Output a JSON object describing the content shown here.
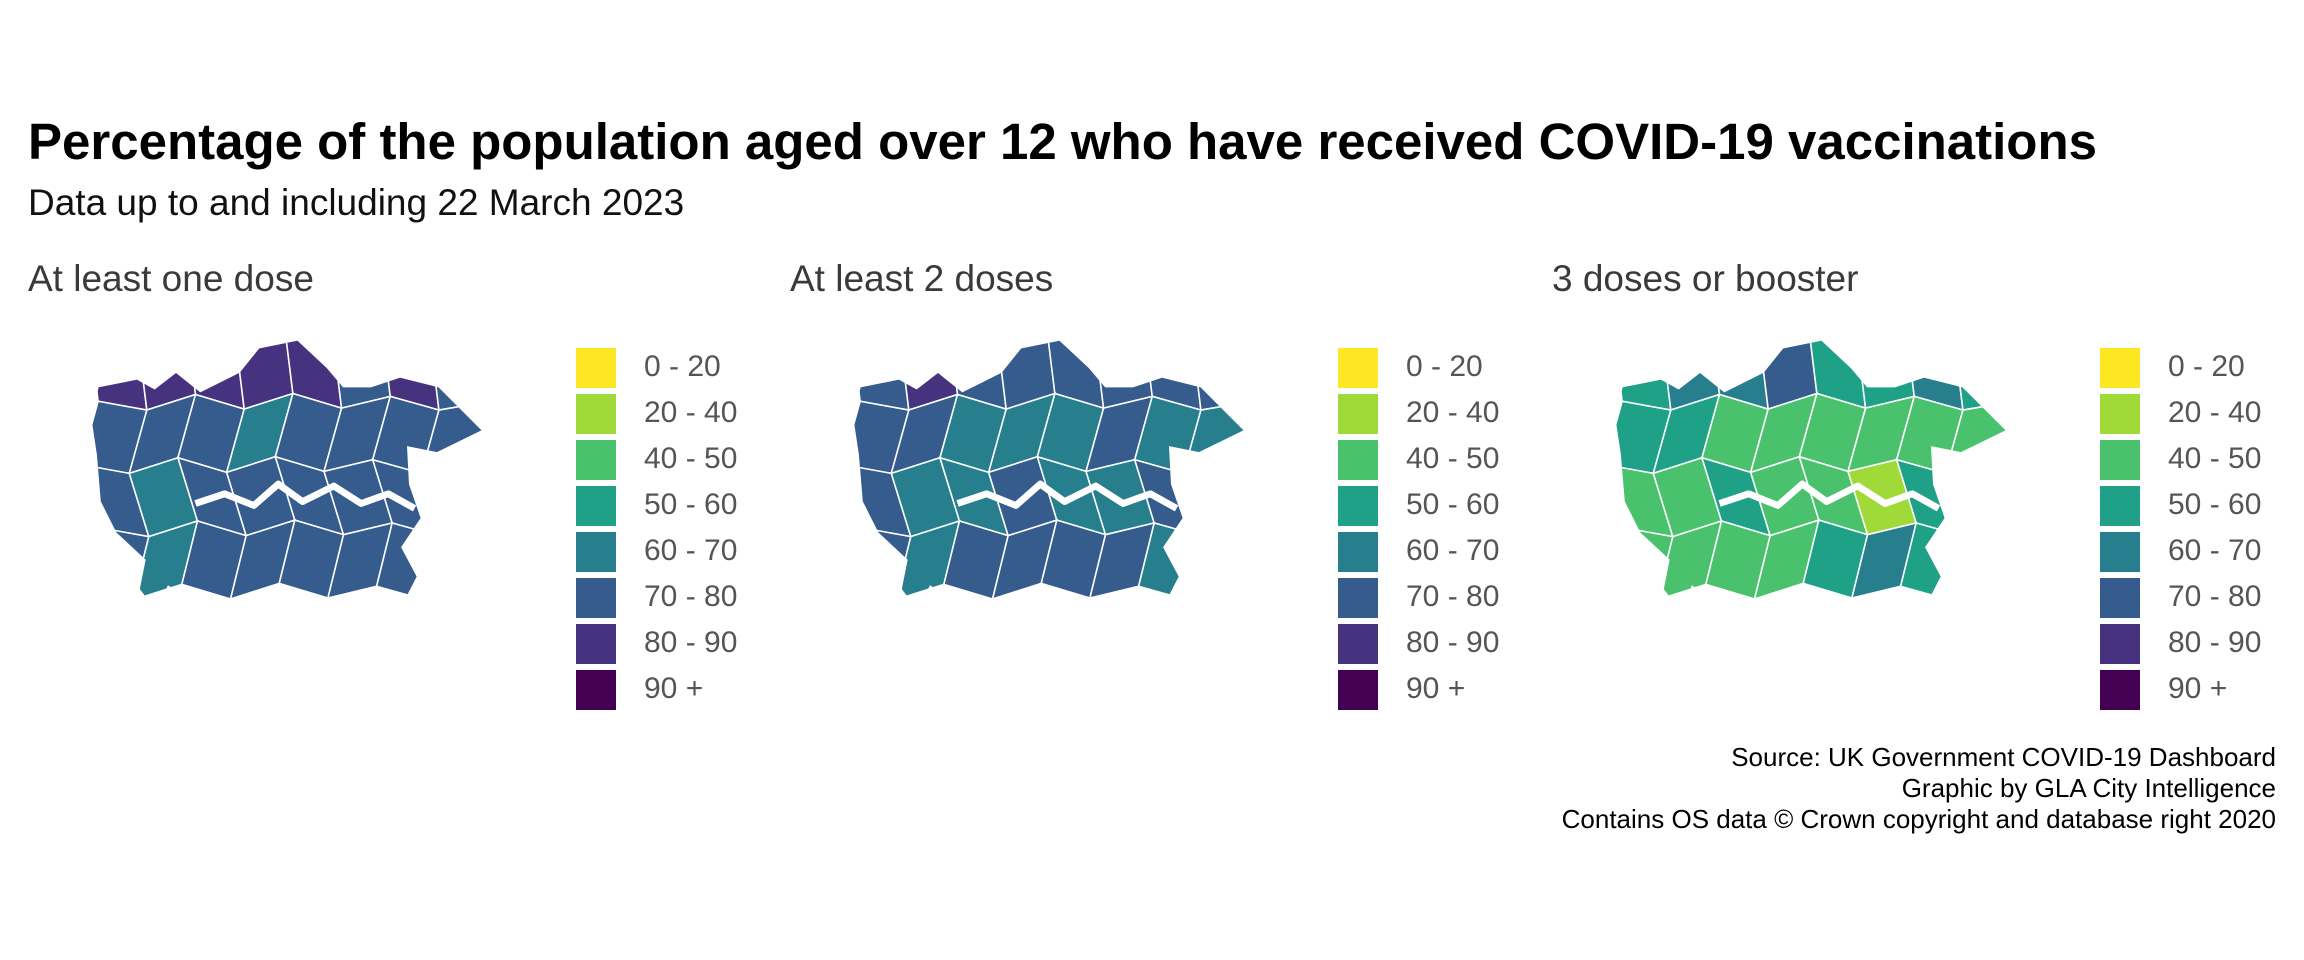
{
  "title": "Percentage of the population aged over 12 who have received COVID-19 vaccinations",
  "subtitle": "Data up to and including 22 March 2023",
  "legend": [
    {
      "label": "0 - 20",
      "color": "#fde725"
    },
    {
      "label": "20 - 40",
      "color": "#a0da39"
    },
    {
      "label": "40 - 50",
      "color": "#4ac16d"
    },
    {
      "label": "50 - 60",
      "color": "#1fa187"
    },
    {
      "label": "60 - 70",
      "color": "#277f8e"
    },
    {
      "label": "70 - 80",
      "color": "#365c8d"
    },
    {
      "label": "80 - 90",
      "color": "#46327e"
    },
    {
      "label": "90 +",
      "color": "#440154"
    }
  ],
  "panels": [
    {
      "title": "At least one dose",
      "borough_bands": [
        "80 - 90",
        "80 - 90",
        "80 - 90",
        "80 - 90",
        "80 - 90",
        "70 - 80",
        "80 - 90",
        "70 - 80",
        "70 - 80",
        "70 - 80",
        "70 - 80",
        "60 - 70",
        "70 - 80",
        "70 - 80",
        "70 - 80",
        "70 - 80",
        "70 - 80",
        "60 - 70",
        "70 - 80",
        "70 - 80",
        "70 - 80",
        "70 - 80",
        "70 - 80",
        "70 - 80",
        "70 - 80",
        "60 - 70",
        "70 - 80",
        "70 - 80",
        "70 - 80",
        "70 - 80",
        "70 - 80",
        "70 - 80",
        "70 - 80"
      ]
    },
    {
      "title": "At least 2 doses",
      "borough_bands": [
        "70 - 80",
        "80 - 90",
        "70 - 80",
        "70 - 80",
        "70 - 80",
        "70 - 80",
        "70 - 80",
        "70 - 80",
        "70 - 80",
        "70 - 80",
        "60 - 70",
        "60 - 70",
        "60 - 70",
        "70 - 80",
        "60 - 70",
        "60 - 70",
        "70 - 80",
        "60 - 70",
        "60 - 70",
        "70 - 80",
        "60 - 70",
        "60 - 70",
        "70 - 80",
        "70 - 80",
        "70 - 80",
        "60 - 70",
        "70 - 80",
        "70 - 80",
        "70 - 80",
        "70 - 80",
        "60 - 70",
        "70 - 80",
        "70 - 80"
      ]
    },
    {
      "title": "3 doses or booster",
      "borough_bands": [
        "50 - 60",
        "60 - 70",
        "60 - 70",
        "70 - 80",
        "50 - 60",
        "50 - 60",
        "60 - 70",
        "50 - 60",
        "50 - 60",
        "50 - 60",
        "40 - 50",
        "40 - 50",
        "40 - 50",
        "40 - 50",
        "40 - 50",
        "40 - 50",
        "40 - 50",
        "40 - 50",
        "50 - 60",
        "40 - 50",
        "40 - 50",
        "20 - 40",
        "50 - 60",
        "40 - 50",
        "40 - 50",
        "40 - 50",
        "40 - 50",
        "40 - 50",
        "50 - 60",
        "60 - 70",
        "50 - 60",
        "50 - 60",
        "40 - 50"
      ]
    }
  ],
  "caption": [
    "Source: UK Government COVID-19 Dashboard",
    "Graphic by GLA City Intelligence",
    "Contains OS data © Crown copyright and database right 2020"
  ]
}
